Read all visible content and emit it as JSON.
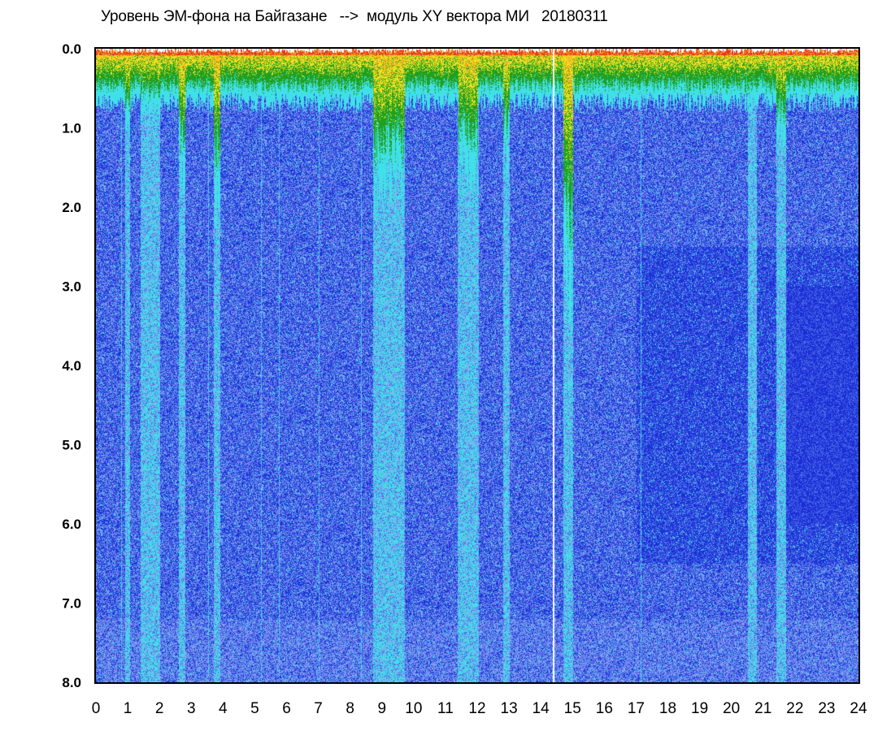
{
  "chart_data": {
    "type": "heatmap",
    "title": "Уровень ЭМ-фона на Байгазане   -->  модуль XY вектора МИ   20180311",
    "x_ticks": [
      "0",
      "1",
      "2",
      "3",
      "4",
      "5",
      "6",
      "7",
      "8",
      "9",
      "10",
      "11",
      "12",
      "13",
      "14",
      "15",
      "16",
      "17",
      "18",
      "19",
      "20",
      "21",
      "22",
      "23",
      "24"
    ],
    "y_ticks": [
      "0.0",
      "1.0",
      "2.0",
      "3.0",
      "4.0",
      "5.0",
      "6.0",
      "7.0",
      "8.0"
    ],
    "xlim": [
      0,
      24
    ],
    "ylim": [
      0,
      8
    ],
    "y_inverted": true,
    "colormap": [
      "#1a2ed6",
      "#4a6ae8",
      "#8a9ef0",
      "#40e0e8",
      "#20a020",
      "#f0e020",
      "#f0a020",
      "#e83020"
    ],
    "background_color": "#ffffff",
    "disturbance_bands": [
      {
        "x": [
          0.9,
          1.05
        ],
        "depth": 1.3
      },
      {
        "x": [
          1.4,
          2.0
        ],
        "depth": 1.0
      },
      {
        "x": [
          2.6,
          2.8
        ],
        "depth": 2.0
      },
      {
        "x": [
          3.7,
          3.9
        ],
        "depth": 2.3
      },
      {
        "x": [
          8.7,
          9.7
        ],
        "depth": 2.2
      },
      {
        "x": [
          11.4,
          12.0
        ],
        "depth": 1.9
      },
      {
        "x": [
          12.8,
          13.0
        ],
        "depth": 1.7
      },
      {
        "x": [
          14.7,
          15.0
        ],
        "depth": 3.8
      },
      {
        "x": [
          20.5,
          20.8
        ],
        "depth": 0.7
      },
      {
        "x": [
          21.4,
          21.7
        ],
        "depth": 1.4
      }
    ],
    "gap_lines_x": [
      14.37
    ]
  }
}
